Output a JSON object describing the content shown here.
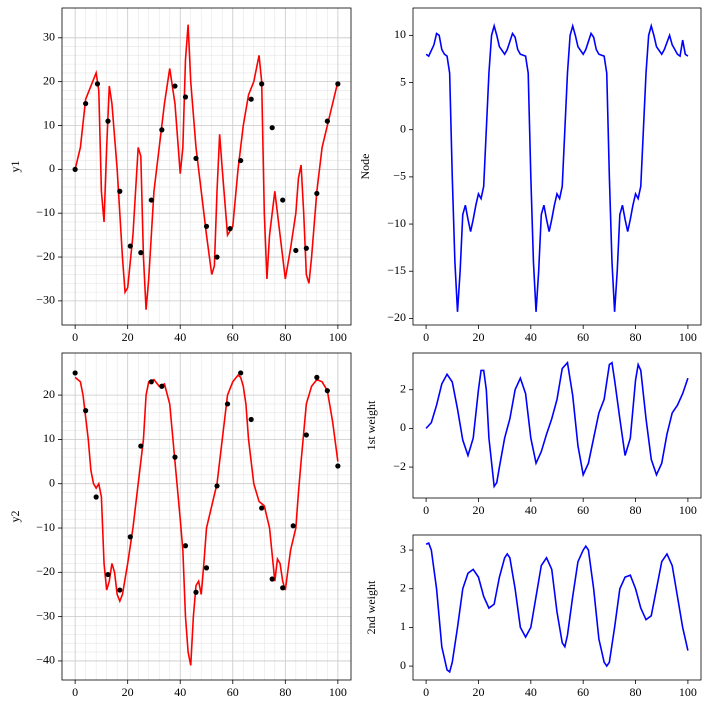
{
  "chart_data": [
    {
      "type": "line",
      "ylabel": "y1",
      "xlim": [
        -5,
        105
      ],
      "ylim": [
        -35.5,
        36.8
      ],
      "xticks": [
        0,
        20,
        40,
        60,
        80,
        100
      ],
      "yticks": [
        {
          "value": -30,
          "label": "−30"
        },
        {
          "value": -20,
          "label": "−20"
        },
        {
          "value": -10,
          "label": "−10"
        },
        0,
        10,
        20,
        30
      ],
      "grid": true,
      "minor_grid": true,
      "series": [
        {
          "type": "line",
          "color": "#ff0000",
          "x": [
            0,
            2,
            4,
            6,
            8,
            9,
            10,
            11,
            12,
            13,
            14,
            16,
            18,
            19,
            20,
            22,
            24,
            25,
            26,
            27,
            28,
            30,
            32,
            34,
            36,
            38,
            40,
            41,
            42,
            43,
            44,
            46,
            48,
            50,
            52,
            53,
            54,
            55,
            56,
            58,
            60,
            62,
            64,
            66,
            68,
            70,
            71,
            72,
            73,
            74,
            76,
            78,
            80,
            82,
            84,
            85,
            86,
            87,
            88,
            89,
            90,
            92,
            94,
            96,
            98,
            100
          ],
          "values": [
            0,
            5,
            16,
            19,
            22,
            18,
            -5,
            -12,
            5,
            19,
            15,
            0,
            -20,
            -28,
            -27,
            -15,
            5,
            3,
            -20,
            -32,
            -25,
            -5,
            5,
            15,
            23,
            15,
            -1,
            5,
            25,
            33,
            20,
            5,
            -5,
            -15,
            -24,
            -22,
            -5,
            8,
            0,
            -15,
            -13,
            0,
            10,
            17,
            20,
            26,
            20,
            -10,
            -25,
            -15,
            -5,
            -15,
            -25,
            -18,
            -10,
            -2,
            1,
            -10,
            -24,
            -26,
            -20,
            -5,
            5,
            10,
            15,
            20
          ]
        },
        {
          "type": "points",
          "color": "#000000",
          "x": [
            0,
            4,
            8.5,
            12.5,
            17,
            21,
            25,
            29,
            33,
            38,
            42,
            46,
            50,
            54,
            59,
            63,
            67,
            71,
            75,
            79,
            84,
            88,
            92,
            96,
            100
          ],
          "values": [
            0,
            15,
            19.5,
            11,
            -5,
            -17.5,
            -19,
            -7,
            9,
            19,
            16.5,
            2.5,
            -13,
            -20,
            -13.5,
            2,
            16,
            19.5,
            9.5,
            -7,
            -18.5,
            -18,
            -5.5,
            11,
            19.5
          ]
        }
      ]
    },
    {
      "type": "line",
      "ylabel": "Node",
      "xlim": [
        -5,
        105
      ],
      "ylim": [
        -20.7,
        12.9
      ],
      "xticks": [
        0,
        20,
        40,
        60,
        80,
        100
      ],
      "yticks": [
        {
          "value": -20,
          "label": "−20"
        },
        {
          "value": -15,
          "label": "−15"
        },
        {
          "value": -10,
          "label": "−10"
        },
        {
          "value": -5,
          "label": "−5"
        },
        0,
        5,
        10
      ],
      "grid": false,
      "minor_grid": false,
      "series": [
        {
          "type": "line",
          "color": "#0000ff",
          "x": [
            0,
            1,
            3,
            4,
            5,
            6,
            7,
            8,
            9,
            10,
            11,
            12,
            13,
            14,
            15,
            16,
            17,
            18,
            19,
            20,
            21,
            22,
            23,
            24,
            25,
            26,
            27,
            28,
            30,
            31,
            33,
            34,
            35,
            36,
            38,
            39,
            40,
            41,
            42,
            43,
            44,
            45,
            46,
            47,
            48,
            49,
            50,
            51,
            52,
            53,
            54,
            55,
            56,
            57,
            58,
            60,
            61,
            63,
            64,
            65,
            66,
            68,
            69,
            70,
            71,
            72,
            73,
            74,
            75,
            76,
            77,
            78,
            79,
            80,
            81,
            82,
            83,
            84,
            85,
            86,
            87,
            88,
            90,
            91,
            93,
            94,
            95,
            96,
            97,
            98,
            99,
            100
          ],
          "values": [
            8,
            7.8,
            9,
            10.2,
            10,
            8.5,
            8,
            7.8,
            6,
            -5,
            -14,
            -19.3,
            -15,
            -9,
            -8,
            -9.5,
            -10.8,
            -9.5,
            -8,
            -6.8,
            -7.3,
            -6,
            0,
            6,
            10,
            11,
            10,
            8.8,
            8,
            8.5,
            10.2,
            9.8,
            8.5,
            8,
            7.8,
            6,
            -5,
            -14,
            -19.3,
            -15,
            -9,
            -8,
            -9.5,
            -10.8,
            -9.5,
            -8,
            -6.8,
            -7.3,
            -6,
            0,
            6,
            10,
            11,
            10,
            8.8,
            8,
            8.5,
            10.2,
            9.8,
            8.5,
            8,
            7.8,
            6,
            -5,
            -14,
            -19.3,
            -15,
            -9,
            -8,
            -9.5,
            -10.8,
            -9.5,
            -8,
            -6.8,
            -7.3,
            -6,
            0,
            6,
            10,
            11,
            10,
            8.8,
            8,
            8.5,
            10,
            9,
            8.5,
            8,
            7.8,
            9.5,
            8,
            7.8
          ]
        }
      ]
    },
    {
      "type": "line",
      "ylabel": "y2",
      "xlim": [
        -5,
        105
      ],
      "ylim": [
        -44.3,
        29.5
      ],
      "xticks": [
        0,
        20,
        40,
        60,
        80,
        100
      ],
      "yticks": [
        {
          "value": -40,
          "label": "−40"
        },
        {
          "value": -30,
          "label": "−30"
        },
        {
          "value": -20,
          "label": "−20"
        },
        {
          "value": -10,
          "label": "−10"
        },
        0,
        10,
        20
      ],
      "grid": true,
      "minor_grid": true,
      "series": [
        {
          "type": "line",
          "color": "#ff0000",
          "x": [
            0,
            2,
            3,
            4,
            5,
            6,
            7,
            8,
            9,
            10,
            11,
            12,
            13,
            14,
            15,
            16,
            17,
            18,
            20,
            22,
            24,
            26,
            27,
            28,
            30,
            32,
            34,
            36,
            38,
            40,
            41,
            42,
            43,
            44,
            45,
            46,
            47,
            48,
            49,
            50,
            52,
            54,
            56,
            58,
            60,
            62,
            63,
            64,
            65,
            66,
            68,
            70,
            72,
            74,
            76,
            77,
            78,
            79,
            80,
            82,
            84,
            85,
            86,
            88,
            90,
            92,
            94,
            96,
            98,
            100
          ],
          "values": [
            24,
            23,
            20,
            15,
            10,
            3,
            0,
            -1,
            0,
            -3,
            -18,
            -24,
            -22,
            -18,
            -20,
            -25,
            -26.5,
            -25,
            -18,
            -10,
            0,
            10,
            20,
            23,
            23.5,
            22,
            22.5,
            18,
            5,
            -8,
            -15,
            -30,
            -38,
            -41,
            -30,
            -23,
            -22,
            -25,
            -18,
            -10,
            -5,
            0,
            10,
            20,
            23,
            24.5,
            24,
            22,
            18,
            10,
            0,
            -4,
            -5,
            -10,
            -22,
            -17,
            -18,
            -22,
            -24,
            -15,
            -10,
            -2,
            5,
            18,
            22,
            23.5,
            23,
            21,
            14,
            5
          ]
        },
        {
          "type": "points",
          "color": "#000000",
          "x": [
            0,
            4,
            8,
            12.5,
            17,
            21,
            25,
            29,
            33,
            38,
            42,
            46,
            50,
            54,
            58,
            63,
            67,
            71,
            75,
            79,
            83,
            88,
            92,
            96,
            100
          ],
          "values": [
            25,
            16.5,
            -3,
            -20.5,
            -24,
            -12,
            8.5,
            23,
            22,
            6,
            -14,
            -24.5,
            -19,
            -0.5,
            18,
            25,
            14.5,
            -5.5,
            -21.5,
            -23.5,
            -9.5,
            11,
            24,
            21,
            4
          ]
        }
      ]
    },
    {
      "type": "line",
      "ylabel": "1st weight",
      "xlim": [
        -5,
        105
      ],
      "ylim": [
        -3.6,
        3.9
      ],
      "xticks": [
        0,
        20,
        40,
        60,
        80,
        100
      ],
      "yticks": [
        {
          "value": -2,
          "label": "−2"
        },
        0,
        2
      ],
      "grid": false,
      "minor_grid": false,
      "series": [
        {
          "type": "line",
          "color": "#0000ff",
          "x": [
            0,
            2,
            4,
            6,
            8,
            10,
            12,
            14,
            16,
            18,
            20,
            21,
            22,
            23,
            24,
            26,
            27,
            28,
            30,
            32,
            34,
            36,
            38,
            40,
            42,
            44,
            46,
            48,
            50,
            52,
            54,
            56,
            58,
            60,
            62,
            64,
            66,
            68,
            70,
            71,
            72,
            74,
            76,
            78,
            80,
            81,
            82,
            84,
            86,
            88,
            90,
            92,
            94,
            96,
            98,
            100
          ],
          "values": [
            0,
            0.3,
            1.2,
            2.3,
            2.8,
            2.4,
            1,
            -0.6,
            -1.4,
            -0.5,
            2,
            3,
            3,
            2,
            -0.5,
            -3,
            -2.8,
            -2,
            -0.5,
            0.5,
            2,
            2.6,
            1.8,
            -0.5,
            -1.8,
            -1.2,
            -0.3,
            0.5,
            1.5,
            3.1,
            3.4,
            1.7,
            -0.9,
            -2.4,
            -1.8,
            -0.5,
            0.8,
            1.5,
            3.3,
            3.4,
            2.5,
            0.5,
            -1.4,
            -0.5,
            2.5,
            3.3,
            3,
            0.5,
            -1.6,
            -2.4,
            -1.8,
            -0.3,
            0.8,
            1.2,
            1.8,
            2.6
          ]
        }
      ]
    },
    {
      "type": "line",
      "ylabel": "2nd weight",
      "xlim": [
        -5,
        105
      ],
      "ylim": [
        -0.36,
        3.39
      ],
      "xticks": [
        0,
        20,
        40,
        60,
        80,
        100
      ],
      "yticks": [
        0,
        1,
        2,
        3
      ],
      "grid": false,
      "minor_grid": false,
      "series": [
        {
          "type": "line",
          "color": "#0000ff",
          "x": [
            0,
            1,
            2,
            4,
            6,
            8,
            9,
            10,
            12,
            14,
            16,
            18,
            20,
            22,
            24,
            26,
            28,
            30,
            31,
            32,
            34,
            36,
            38,
            40,
            42,
            44,
            46,
            48,
            50,
            52,
            53,
            54,
            56,
            58,
            60,
            61,
            62,
            64,
            66,
            68,
            69,
            70,
            72,
            74,
            76,
            78,
            80,
            82,
            84,
            86,
            88,
            90,
            92,
            94,
            96,
            98,
            100
          ],
          "values": [
            3.15,
            3.18,
            3,
            2,
            0.5,
            -0.1,
            -0.15,
            0.1,
            1,
            2,
            2.4,
            2.5,
            2.3,
            1.8,
            1.5,
            1.6,
            2.3,
            2.8,
            2.9,
            2.8,
            2,
            1,
            0.75,
            1,
            1.8,
            2.6,
            2.8,
            2.5,
            1.4,
            0.6,
            0.5,
            0.8,
            1.8,
            2.7,
            3,
            3.1,
            3,
            2,
            0.7,
            0.1,
            0,
            0.1,
            1,
            2,
            2.3,
            2.35,
            2,
            1.5,
            1.2,
            1.3,
            2,
            2.7,
            2.9,
            2.6,
            1.8,
            1,
            0.4
          ]
        }
      ]
    }
  ]
}
